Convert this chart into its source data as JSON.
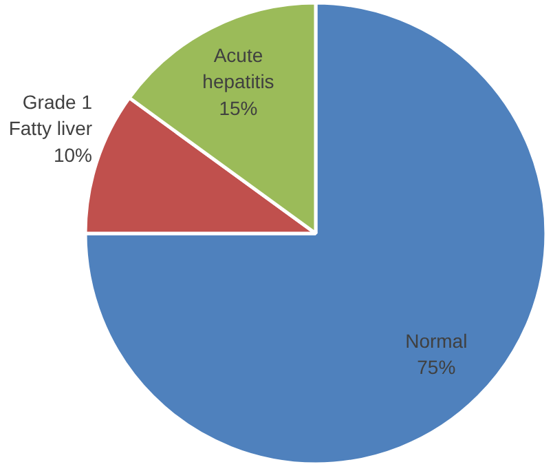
{
  "chart_data": {
    "type": "pie",
    "categories": [
      "Normal",
      "Grade 1 Fatty liver",
      "Acute hepatitis"
    ],
    "values": [
      75,
      10,
      15
    ],
    "value_labels": [
      "75%",
      "10%",
      "15%"
    ],
    "colors": [
      "#4f81bd",
      "#c0504d",
      "#9bbb59"
    ]
  }
}
